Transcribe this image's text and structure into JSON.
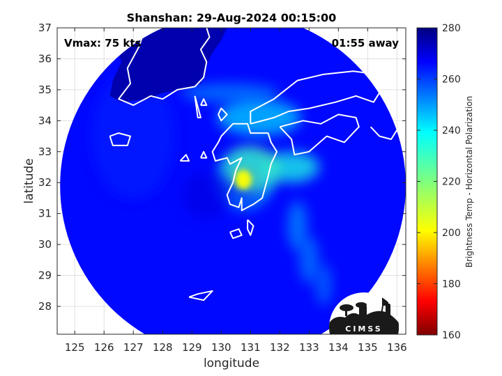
{
  "chart_data": {
    "type": "heatmap",
    "title": "Shanshan: 29-Aug-2024 00:15:00",
    "xlabel": "longitude",
    "ylabel": "latitude",
    "xlim": [
      124.4,
      136.3
    ],
    "ylim": [
      27.1,
      37.0
    ],
    "xticks": [
      125,
      126,
      127,
      128,
      129,
      130,
      131,
      132,
      133,
      134,
      135,
      136
    ],
    "yticks": [
      28,
      29,
      30,
      31,
      32,
      33,
      34,
      35,
      36,
      37
    ],
    "grid": true,
    "annotations": {
      "vmax": "Vmax: 75 kts",
      "away": "01:55 away"
    },
    "colorbar": {
      "label": "Brightness Temp - Horizontal Polarization",
      "range": [
        160,
        280
      ],
      "ticks": [
        160,
        180,
        200,
        220,
        240,
        260,
        280
      ],
      "colormap": "jet"
    },
    "swath": {
      "center": [
        130.4,
        31.9
      ],
      "radius_deg": 5.9
    },
    "storm_center": [
      130.7,
      32.0
    ],
    "features": [
      {
        "name": "core",
        "lon": 130.75,
        "lat": 32.1,
        "value": 205
      },
      {
        "name": "inner-ring",
        "lon": 131.0,
        "lat": 32.4,
        "value": 225
      },
      {
        "name": "north-band",
        "lon": 131.3,
        "lat": 34.1,
        "value": 240
      },
      {
        "name": "east-band",
        "lon": 132.4,
        "lat": 32.5,
        "value": 232
      },
      {
        "name": "rainband-1",
        "lon": 132.6,
        "lat": 30.6,
        "value": 248
      },
      {
        "name": "rainband-2",
        "lon": 133.0,
        "lat": 29.5,
        "value": 250
      },
      {
        "name": "rainband-3",
        "lon": 133.5,
        "lat": 28.7,
        "value": 252
      },
      {
        "name": "north-arc",
        "lon": 130.3,
        "lat": 34.9,
        "value": 250
      },
      {
        "name": "west-edge",
        "lon": 127.0,
        "lat": 33.5,
        "value": 262
      }
    ],
    "background_value": 264,
    "land_value": 275,
    "logo_text": "CIMSS"
  }
}
